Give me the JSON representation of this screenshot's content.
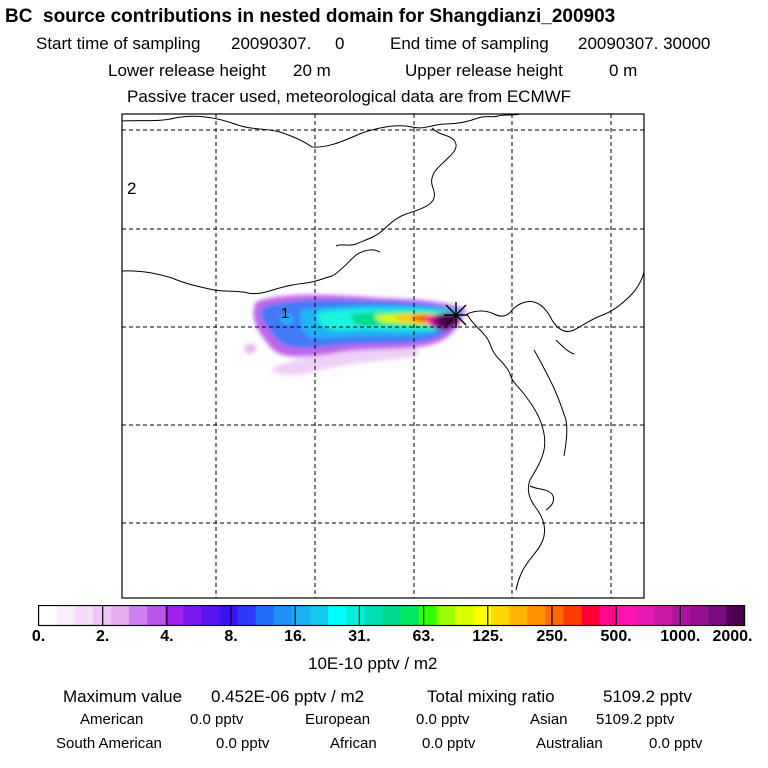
{
  "title": "BC  source contributions in nested domain for Shangdianzi_200903",
  "header": {
    "start_label": "Start time of sampling",
    "start_value": "20090307.     0",
    "end_label": "End time of sampling",
    "end_value": "20090307. 30000",
    "lower_label": "Lower release height",
    "lower_value": "20 m",
    "upper_label": "Upper release height",
    "upper_value": "0 m",
    "note": "Passive tracer used, meteorological data are from ECMWF"
  },
  "map": {
    "region_labels": [
      "2",
      "1"
    ],
    "station_marker": "station-star-icon"
  },
  "colorbar": {
    "ticks": [
      "0.",
      "2.",
      "4.",
      "8.",
      "16.",
      "31.",
      "63.",
      "125.",
      "250.",
      "500.",
      "1000.",
      "2000."
    ],
    "units": "10E-10 pptv / m2",
    "colors": [
      "#ffffff",
      "#fbeefc",
      "#f5dcf8",
      "#eec6f4",
      "#e6b0f0",
      "#cf80f0",
      "#bb55ee",
      "#a020f0",
      "#7a1af0",
      "#5a14f2",
      "#3a10f4",
      "#2a3af8",
      "#1e6ef8",
      "#1e90f8",
      "#1ab0f4",
      "#16c8f0",
      "#00ffff",
      "#00f0dc",
      "#00e0b8",
      "#00d890",
      "#00e860",
      "#30ff00",
      "#9aff00",
      "#d8ff00",
      "#ffff00",
      "#ffd800",
      "#ffb400",
      "#ff9000",
      "#ff6a00",
      "#ff3c00",
      "#ff0032",
      "#ff0a8c",
      "#ff14b4",
      "#e81ab4",
      "#cc1aa8",
      "#b0149e",
      "#961090",
      "#7a0a80",
      "#500050"
    ]
  },
  "stats": {
    "max_label": "Maximum value",
    "max_value": "0.452E-06 pptv / m2",
    "total_label": "Total mixing ratio",
    "total_value": "5109.2 pptv"
  },
  "sources": [
    {
      "name": "American",
      "value": "0.0 pptv"
    },
    {
      "name": "European",
      "value": "0.0 pptv"
    },
    {
      "name": "Asian",
      "value": "5109.2 pptv"
    },
    {
      "name": "South American",
      "value": "0.0 pptv"
    },
    {
      "name": "African",
      "value": "0.0 pptv"
    },
    {
      "name": "Australian",
      "value": "0.0 pptv"
    }
  ]
}
